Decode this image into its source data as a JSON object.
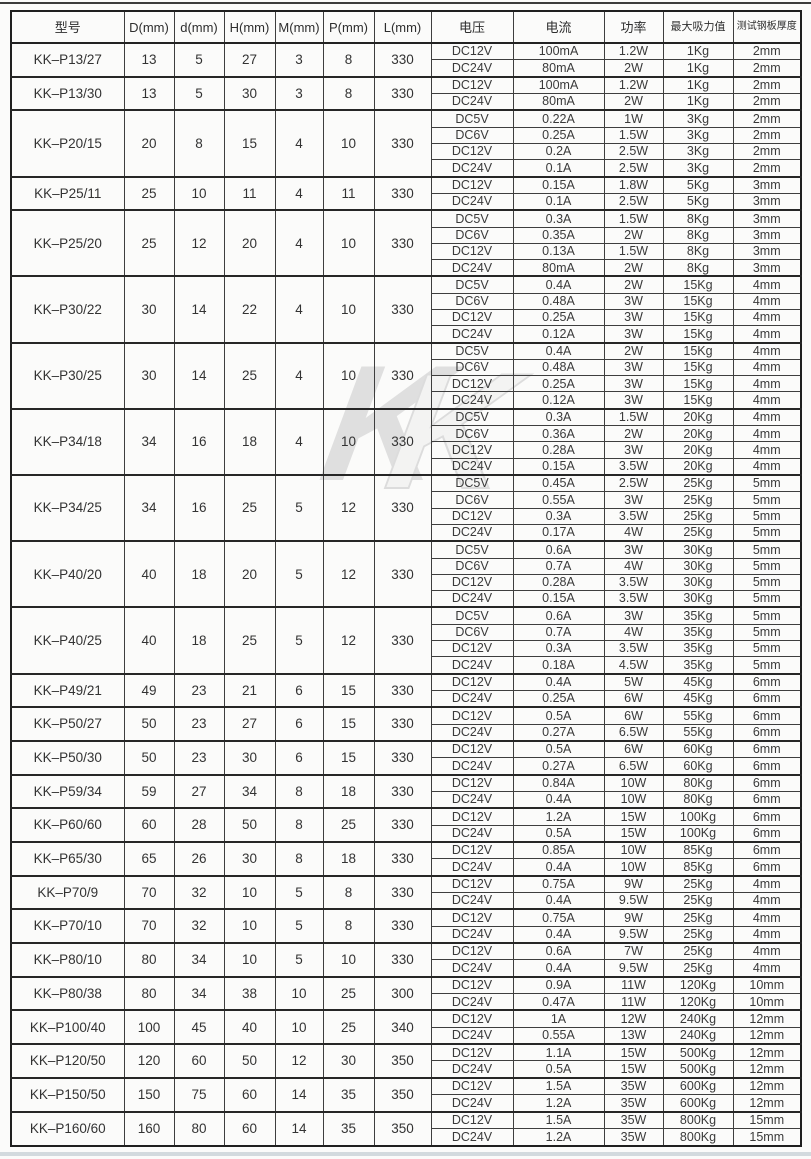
{
  "watermark": {
    "back_letter": "K",
    "front_letter": "K"
  },
  "table": {
    "columns": [
      "型号",
      "D(mm)",
      "d(mm)",
      "H(mm)",
      "M(mm)",
      "P(mm)",
      "L(mm)",
      "电压",
      "电流",
      "功率",
      "最大吸力值",
      "测试钢板厚度"
    ],
    "variant_columns": [
      "电压",
      "电流",
      "功率",
      "最大吸力值",
      "测试钢板厚度"
    ],
    "models": [
      {
        "model": "KK–P13/27",
        "D": "13",
        "d": "5",
        "H": "27",
        "M": "3",
        "P": "8",
        "L": "330",
        "variants": [
          [
            "DC12V",
            "100mA",
            "1.2W",
            "1Kg",
            "2mm"
          ],
          [
            "DC24V",
            "80mA",
            "2W",
            "1Kg",
            "2mm"
          ]
        ]
      },
      {
        "model": "KK–P13/30",
        "D": "13",
        "d": "5",
        "H": "30",
        "M": "3",
        "P": "8",
        "L": "330",
        "variants": [
          [
            "DC12V",
            "100mA",
            "1.2W",
            "1Kg",
            "2mm"
          ],
          [
            "DC24V",
            "80mA",
            "2W",
            "1Kg",
            "2mm"
          ]
        ]
      },
      {
        "model": "KK–P20/15",
        "D": "20",
        "d": "8",
        "H": "15",
        "M": "4",
        "P": "10",
        "L": "330",
        "variants": [
          [
            "DC5V",
            "0.22A",
            "1W",
            "3Kg",
            "2mm"
          ],
          [
            "DC6V",
            "0.25A",
            "1.5W",
            "3Kg",
            "2mm"
          ],
          [
            "DC12V",
            "0.2A",
            "2.5W",
            "3Kg",
            "2mm"
          ],
          [
            "DC24V",
            "0.1A",
            "2.5W",
            "3Kg",
            "2mm"
          ]
        ]
      },
      {
        "model": "KK–P25/11",
        "D": "25",
        "d": "10",
        "H": "11",
        "M": "4",
        "P": "11",
        "L": "330",
        "variants": [
          [
            "DC12V",
            "0.15A",
            "1.8W",
            "5Kg",
            "3mm"
          ],
          [
            "DC24V",
            "0.1A",
            "2.5W",
            "5Kg",
            "3mm"
          ]
        ]
      },
      {
        "model": "KK–P25/20",
        "D": "25",
        "d": "12",
        "H": "20",
        "M": "4",
        "P": "10",
        "L": "330",
        "variants": [
          [
            "DC5V",
            "0.3A",
            "1.5W",
            "8Kg",
            "3mm"
          ],
          [
            "DC6V",
            "0.35A",
            "2W",
            "8Kg",
            "3mm"
          ],
          [
            "DC12V",
            "0.13A",
            "1.5W",
            "8Kg",
            "3mm"
          ],
          [
            "DC24V",
            "80mA",
            "2W",
            "8Kg",
            "3mm"
          ]
        ]
      },
      {
        "model": "KK–P30/22",
        "D": "30",
        "d": "14",
        "H": "22",
        "M": "4",
        "P": "10",
        "L": "330",
        "variants": [
          [
            "DC5V",
            "0.4A",
            "2W",
            "15Kg",
            "4mm"
          ],
          [
            "DC6V",
            "0.48A",
            "3W",
            "15Kg",
            "4mm"
          ],
          [
            "DC12V",
            "0.25A",
            "3W",
            "15Kg",
            "4mm"
          ],
          [
            "DC24V",
            "0.12A",
            "3W",
            "15Kg",
            "4mm"
          ]
        ]
      },
      {
        "model": "KK–P30/25",
        "D": "30",
        "d": "14",
        "H": "25",
        "M": "4",
        "P": "10",
        "L": "330",
        "variants": [
          [
            "DC5V",
            "0.4A",
            "2W",
            "15Kg",
            "4mm"
          ],
          [
            "DC6V",
            "0.48A",
            "3W",
            "15Kg",
            "4mm"
          ],
          [
            "DC12V",
            "0.25A",
            "3W",
            "15Kg",
            "4mm"
          ],
          [
            "DC24V",
            "0.12A",
            "3W",
            "15Kg",
            "4mm"
          ]
        ]
      },
      {
        "model": "KK–P34/18",
        "D": "34",
        "d": "16",
        "H": "18",
        "M": "4",
        "P": "10",
        "L": "330",
        "variants": [
          [
            "DC5V",
            "0.3A",
            "1.5W",
            "20Kg",
            "4mm"
          ],
          [
            "DC6V",
            "0.36A",
            "2W",
            "20Kg",
            "4mm"
          ],
          [
            "DC12V",
            "0.28A",
            "3W",
            "20Kg",
            "4mm"
          ],
          [
            "DC24V",
            "0.15A",
            "3.5W",
            "20Kg",
            "4mm"
          ]
        ]
      },
      {
        "model": "KK–P34/25",
        "D": "34",
        "d": "16",
        "H": "25",
        "M": "5",
        "P": "12",
        "L": "330",
        "variants": [
          [
            "DC5V",
            "0.45A",
            "2.5W",
            "25Kg",
            "5mm"
          ],
          [
            "DC6V",
            "0.55A",
            "3W",
            "25Kg",
            "5mm"
          ],
          [
            "DC12V",
            "0.3A",
            "3.5W",
            "25Kg",
            "5mm"
          ],
          [
            "DC24V",
            "0.17A",
            "4W",
            "25Kg",
            "5mm"
          ]
        ]
      },
      {
        "model": "KK–P40/20",
        "D": "40",
        "d": "18",
        "H": "20",
        "M": "5",
        "P": "12",
        "L": "330",
        "variants": [
          [
            "DC5V",
            "0.6A",
            "3W",
            "30Kg",
            "5mm"
          ],
          [
            "DC6V",
            "0.7A",
            "4W",
            "30Kg",
            "5mm"
          ],
          [
            "DC12V",
            "0.28A",
            "3.5W",
            "30Kg",
            "5mm"
          ],
          [
            "DC24V",
            "0.15A",
            "3.5W",
            "30Kg",
            "5mm"
          ]
        ]
      },
      {
        "model": "KK–P40/25",
        "D": "40",
        "d": "18",
        "H": "25",
        "M": "5",
        "P": "12",
        "L": "330",
        "variants": [
          [
            "DC5V",
            "0.6A",
            "3W",
            "35Kg",
            "5mm"
          ],
          [
            "DC6V",
            "0.7A",
            "4W",
            "35Kg",
            "5mm"
          ],
          [
            "DC12V",
            "0.3A",
            "3.5W",
            "35Kg",
            "5mm"
          ],
          [
            "DC24V",
            "0.18A",
            "4.5W",
            "35Kg",
            "5mm"
          ]
        ]
      },
      {
        "model": "KK–P49/21",
        "D": "49",
        "d": "23",
        "H": "21",
        "M": "6",
        "P": "15",
        "L": "330",
        "variants": [
          [
            "DC12V",
            "0.4A",
            "5W",
            "45Kg",
            "6mm"
          ],
          [
            "DC24V",
            "0.25A",
            "6W",
            "45Kg",
            "6mm"
          ]
        ]
      },
      {
        "model": "KK–P50/27",
        "D": "50",
        "d": "23",
        "H": "27",
        "M": "6",
        "P": "15",
        "L": "330",
        "variants": [
          [
            "DC12V",
            "0.5A",
            "6W",
            "55Kg",
            "6mm"
          ],
          [
            "DC24V",
            "0.27A",
            "6.5W",
            "55Kg",
            "6mm"
          ]
        ]
      },
      {
        "model": "KK–P50/30",
        "D": "50",
        "d": "23",
        "H": "30",
        "M": "6",
        "P": "15",
        "L": "330",
        "variants": [
          [
            "DC12V",
            "0.5A",
            "6W",
            "60Kg",
            "6mm"
          ],
          [
            "DC24V",
            "0.27A",
            "6.5W",
            "60Kg",
            "6mm"
          ]
        ]
      },
      {
        "model": "KK–P59/34",
        "D": "59",
        "d": "27",
        "H": "34",
        "M": "8",
        "P": "18",
        "L": "330",
        "variants": [
          [
            "DC12V",
            "0.84A",
            "10W",
            "80Kg",
            "6mm"
          ],
          [
            "DC24V",
            "0.4A",
            "10W",
            "80Kg",
            "6mm"
          ]
        ]
      },
      {
        "model": "KK–P60/60",
        "D": "60",
        "d": "28",
        "H": "50",
        "M": "8",
        "P": "25",
        "L": "330",
        "variants": [
          [
            "DC12V",
            "1.2A",
            "15W",
            "100Kg",
            "6mm"
          ],
          [
            "DC24V",
            "0.5A",
            "15W",
            "100Kg",
            "6mm"
          ]
        ]
      },
      {
        "model": "KK–P65/30",
        "D": "65",
        "d": "26",
        "H": "30",
        "M": "8",
        "P": "18",
        "L": "330",
        "variants": [
          [
            "DC12V",
            "0.85A",
            "10W",
            "85Kg",
            "6mm"
          ],
          [
            "DC24V",
            "0.4A",
            "10W",
            "85Kg",
            "6mm"
          ]
        ]
      },
      {
        "model": "KK–P70/9",
        "D": "70",
        "d": "32",
        "H": "10",
        "M": "5",
        "P": "8",
        "L": "330",
        "variants": [
          [
            "DC12V",
            "0.75A",
            "9W",
            "25Kg",
            "4mm"
          ],
          [
            "DC24V",
            "0.4A",
            "9.5W",
            "25Kg",
            "4mm"
          ]
        ]
      },
      {
        "model": "KK–P70/10",
        "D": "70",
        "d": "32",
        "H": "10",
        "M": "5",
        "P": "8",
        "L": "330",
        "variants": [
          [
            "DC12V",
            "0.75A",
            "9W",
            "25Kg",
            "4mm"
          ],
          [
            "DC24V",
            "0.4A",
            "9.5W",
            "25Kg",
            "4mm"
          ]
        ]
      },
      {
        "model": "KK–P80/10",
        "D": "80",
        "d": "34",
        "H": "10",
        "M": "5",
        "P": "10",
        "L": "330",
        "variants": [
          [
            "DC12V",
            "0.6A",
            "7W",
            "25Kg",
            "4mm"
          ],
          [
            "DC24V",
            "0.4A",
            "9.5W",
            "25Kg",
            "4mm"
          ]
        ]
      },
      {
        "model": "KK–P80/38",
        "D": "80",
        "d": "34",
        "H": "38",
        "M": "10",
        "P": "25",
        "L": "300",
        "variants": [
          [
            "DC12V",
            "0.9A",
            "11W",
            "120Kg",
            "10mm"
          ],
          [
            "DC24V",
            "0.47A",
            "11W",
            "120Kg",
            "10mm"
          ]
        ]
      },
      {
        "model": "KK–P100/40",
        "D": "100",
        "d": "45",
        "H": "40",
        "M": "10",
        "P": "25",
        "L": "340",
        "variants": [
          [
            "DC12V",
            "1A",
            "12W",
            "240Kg",
            "12mm"
          ],
          [
            "DC24V",
            "0.55A",
            "13W",
            "240Kg",
            "12mm"
          ]
        ]
      },
      {
        "model": "KK–P120/50",
        "D": "120",
        "d": "60",
        "H": "50",
        "M": "12",
        "P": "30",
        "L": "350",
        "variants": [
          [
            "DC12V",
            "1.1A",
            "15W",
            "500Kg",
            "12mm"
          ],
          [
            "DC24V",
            "0.5A",
            "15W",
            "500Kg",
            "12mm"
          ]
        ]
      },
      {
        "model": "KK–P150/50",
        "D": "150",
        "d": "75",
        "H": "60",
        "M": "14",
        "P": "35",
        "L": "350",
        "variants": [
          [
            "DC12V",
            "1.5A",
            "35W",
            "600Kg",
            "12mm"
          ],
          [
            "DC24V",
            "1.2A",
            "35W",
            "600Kg",
            "12mm"
          ]
        ]
      },
      {
        "model": "KK–P160/60",
        "D": "160",
        "d": "80",
        "H": "60",
        "M": "14",
        "P": "35",
        "L": "350",
        "variants": [
          [
            "DC12V",
            "1.5A",
            "35W",
            "800Kg",
            "15mm"
          ],
          [
            "DC24V",
            "1.2A",
            "35W",
            "800Kg",
            "15mm"
          ]
        ]
      }
    ]
  }
}
